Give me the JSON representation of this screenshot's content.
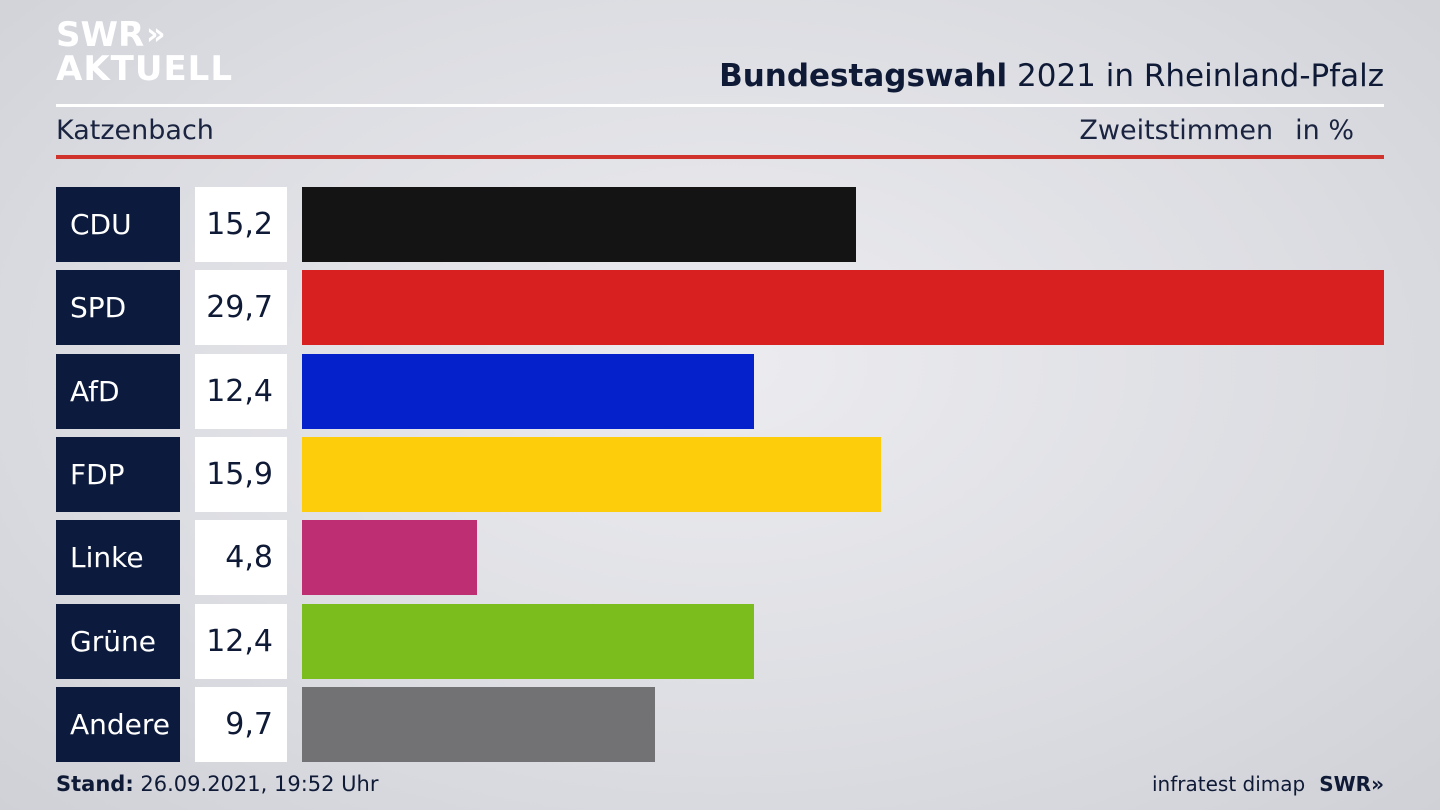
{
  "brand": {
    "line1": "SWR",
    "line1_chevrons": "»",
    "line2": "AKTUELL"
  },
  "header": {
    "title_bold": "Bundestagswahl",
    "title_rest": " 2021 in Rheinland-Pfalz"
  },
  "subheader": {
    "region": "Katzenbach",
    "measure": "Zweitstimmen",
    "unit": "in %"
  },
  "chart_data": {
    "type": "bar",
    "orientation": "horizontal",
    "title": "Bundestagswahl 2021 in Rheinland-Pfalz",
    "categories": [
      "CDU",
      "SPD",
      "AfD",
      "FDP",
      "Linke",
      "Grüne",
      "Andere"
    ],
    "values": [
      15.2,
      29.7,
      12.4,
      15.9,
      4.8,
      12.4,
      9.7
    ],
    "value_labels": [
      "15,2",
      "29,7",
      "12,4",
      "15,9",
      "4,8",
      "12,4",
      "9,7"
    ],
    "colors": [
      "#141414",
      "#d82020",
      "#0421cc",
      "#fdcd0c",
      "#be2e73",
      "#7bbd1c",
      "#727274"
    ],
    "xlim": [
      0,
      29.7
    ]
  },
  "footer": {
    "stand_label": "Stand:",
    "stand_value": " 26.09.2021, 19:52 Uhr",
    "source": "infratest dimap",
    "logo": "SWR»"
  }
}
